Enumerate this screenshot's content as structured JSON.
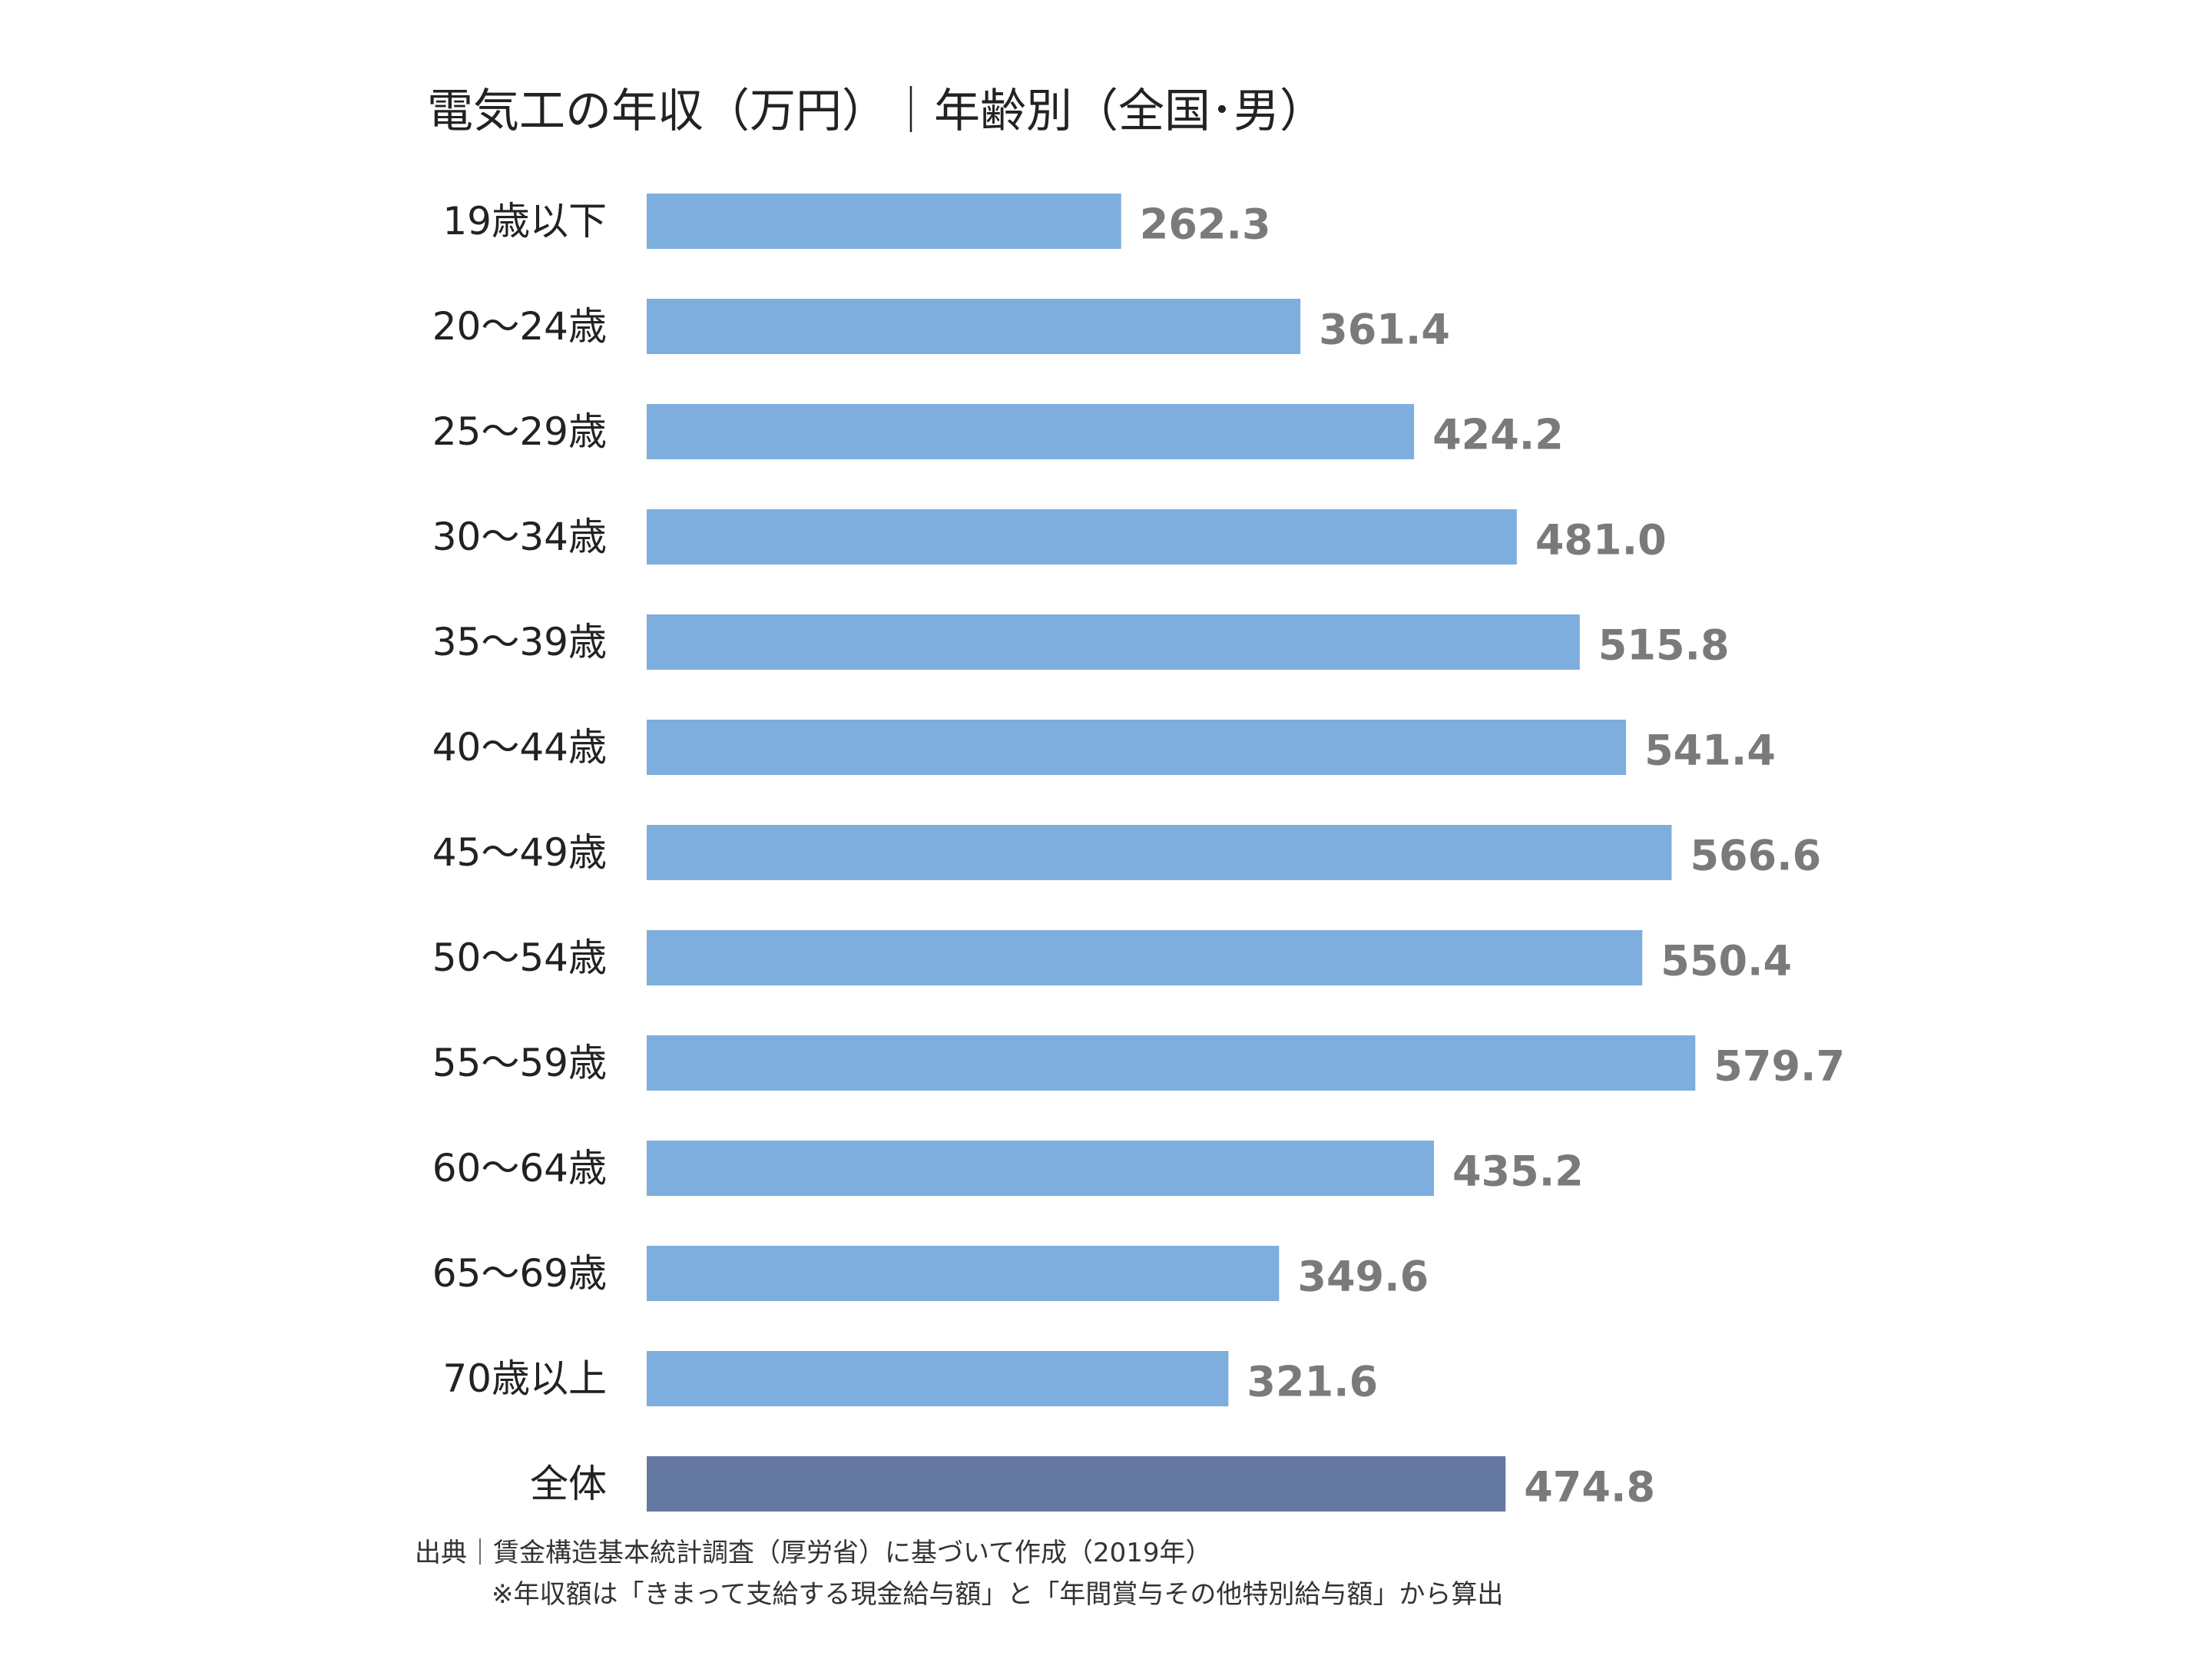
{
  "chart_data": {
    "type": "bar",
    "orientation": "horizontal",
    "title": "電気工の年収（万円）｜年齢別（全国･男）",
    "categories": [
      "19歳以下",
      "20～24歳",
      "25～29歳",
      "30～34歳",
      "35～39歳",
      "40～44歳",
      "45～49歳",
      "50～54歳",
      "55～59歳",
      "60～64歳",
      "65～69歳",
      "70歳以上",
      "全体"
    ],
    "values": [
      262.3,
      361.4,
      424.2,
      481.0,
      515.8,
      541.4,
      566.6,
      550.4,
      579.7,
      435.2,
      349.6,
      321.6,
      474.8
    ],
    "value_labels": [
      "262.3",
      "361.4",
      "424.2",
      "481.0",
      "515.8",
      "541.4",
      "566.6",
      "550.4",
      "579.7",
      "435.2",
      "349.6",
      "321.6",
      "474.8"
    ],
    "xlim": [
      0,
      580
    ],
    "grid": false,
    "legend": "none",
    "bar_color": "#7eaedd",
    "highlight_color": "#6578a2",
    "highlight_category": "全体",
    "value_label_color": "#7a7a7a"
  },
  "footer": {
    "source": "出典｜賃金構造基本統計調査（厚労省）に基づいて作成（2019年）",
    "note": "※年収額は「きまって支給する現金給与額」と「年間賞与その他特別給与額」から算出"
  }
}
